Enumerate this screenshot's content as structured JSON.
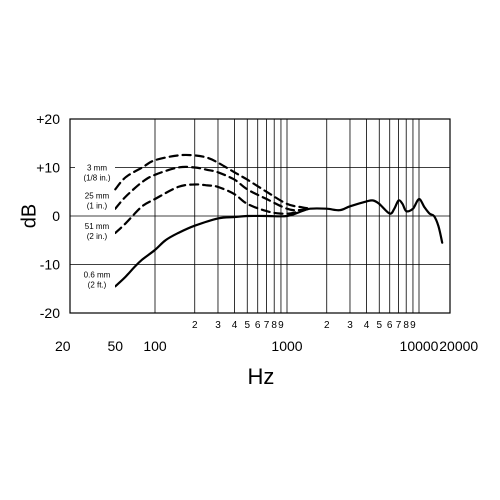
{
  "chart_data": {
    "type": "line",
    "title": "",
    "xlabel": "Hz",
    "ylabel": "dB",
    "xscale": "log",
    "xlim": [
      50,
      15000
    ],
    "ylim": [
      -20,
      20
    ],
    "grid": true,
    "y_ticks": [
      "+20",
      "+10",
      "0",
      "-10",
      "-20"
    ],
    "x_major_ticks": [
      {
        "value": 20,
        "label": "20"
      },
      {
        "value": 50,
        "label": "50"
      },
      {
        "value": 100,
        "label": "100"
      },
      {
        "value": 1000,
        "label": "1000"
      },
      {
        "value": 10000,
        "label": "10000"
      },
      {
        "value": 20000,
        "label": "20000"
      }
    ],
    "x_minor_ticks": [
      {
        "value": 200,
        "label": "2"
      },
      {
        "value": 300,
        "label": "3"
      },
      {
        "value": 400,
        "label": "4"
      },
      {
        "value": 500,
        "label": "5"
      },
      {
        "value": 600,
        "label": "6"
      },
      {
        "value": 700,
        "label": "7"
      },
      {
        "value": 800,
        "label": "8"
      },
      {
        "value": 900,
        "label": "9"
      },
      {
        "value": 2000,
        "label": "2"
      },
      {
        "value": 3000,
        "label": "3"
      },
      {
        "value": 4000,
        "label": "4"
      },
      {
        "value": 5000,
        "label": "5"
      },
      {
        "value": 6000,
        "label": "6"
      },
      {
        "value": 7000,
        "label": "7"
      },
      {
        "value": 8000,
        "label": "8"
      },
      {
        "value": 9000,
        "label": "9"
      }
    ],
    "series": [
      {
        "style": "solid",
        "annotation": [
          "0.6 mm",
          "(2 ft.)"
        ],
        "x": [
          50,
          60,
          70,
          80,
          100,
          120,
          150,
          200,
          300,
          400,
          500,
          700,
          1000,
          1300,
          1500,
          2000,
          2500,
          3000,
          4000,
          4500,
          5000,
          6000,
          6500,
          7000,
          7500,
          8000,
          9000,
          10000,
          11000,
          12000,
          13000,
          14000,
          15000
        ],
        "y": [
          -14.5,
          -12.5,
          -10.5,
          -9,
          -7,
          -5,
          -3.5,
          -2,
          -0.5,
          -0.2,
          0,
          0,
          0,
          1,
          1.5,
          1.5,
          1.2,
          2,
          3,
          3.2,
          2.5,
          0.5,
          1.5,
          3.2,
          2.5,
          1,
          1.5,
          3.5,
          1.8,
          0.5,
          0,
          -2,
          -5.5
        ]
      },
      {
        "style": "dashed",
        "annotation": [
          "3 mm",
          "(1/8 in.)"
        ],
        "x": [
          50,
          60,
          80,
          100,
          150,
          200,
          250,
          300,
          400,
          500,
          700,
          1000,
          1300,
          1500
        ],
        "y": [
          5.5,
          8,
          10,
          11.5,
          12.5,
          12.5,
          12,
          11,
          9,
          7.5,
          5,
          2.5,
          1.8,
          1.5
        ]
      },
      {
        "style": "dashed",
        "annotation": [
          "25 mm",
          "(1 in.)"
        ],
        "x": [
          50,
          60,
          80,
          100,
          150,
          200,
          250,
          300,
          400,
          500,
          700,
          1000,
          1200,
          1500
        ],
        "y": [
          1.5,
          4,
          7,
          8.5,
          10,
          10,
          9.5,
          9,
          7.5,
          5.5,
          3.5,
          1.5,
          1.2,
          1.5
        ]
      },
      {
        "style": "dashed",
        "annotation": [
          "51 mm",
          "(2 in.)"
        ],
        "x": [
          50,
          60,
          80,
          100,
          150,
          200,
          250,
          300,
          400,
          500,
          700,
          900,
          1100,
          1300,
          1500
        ],
        "y": [
          -3.5,
          -1.5,
          2,
          3.5,
          6,
          6.5,
          6.3,
          6,
          4.5,
          2.5,
          1,
          0.5,
          0.6,
          1.2,
          1.5
        ]
      }
    ]
  }
}
